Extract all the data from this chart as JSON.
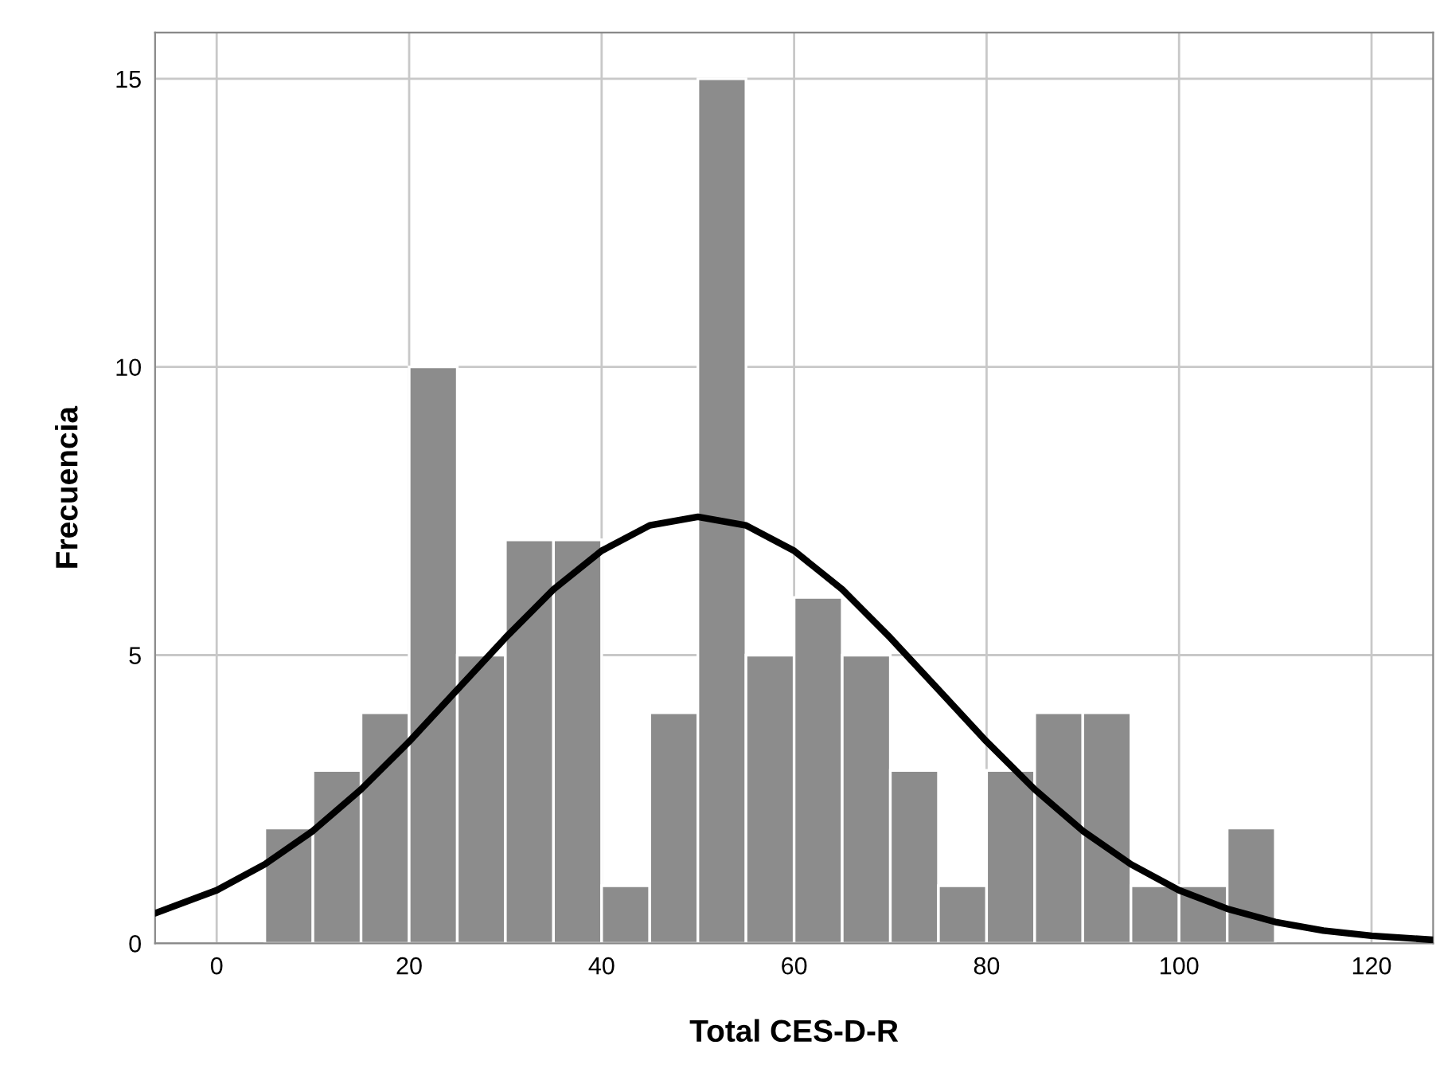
{
  "chart_data": {
    "type": "histogram",
    "xlabel": "Total CES-D-R",
    "ylabel": "Frecuencia",
    "bins": [
      5,
      10,
      15,
      20,
      25,
      30,
      35,
      40,
      45,
      50,
      55,
      60,
      65,
      70,
      75,
      80,
      85,
      90,
      95,
      100,
      105,
      110
    ],
    "values": [
      2,
      3,
      4,
      10,
      5,
      7,
      7,
      1,
      4,
      15,
      5,
      6,
      5,
      3,
      1,
      3,
      4,
      4,
      1,
      1,
      2
    ],
    "color": "#8c8c8c",
    "series": [
      {
        "type": "line",
        "color": "#000000",
        "x": [
          -6.4,
          0,
          5,
          10,
          15,
          20,
          25,
          30,
          35,
          40,
          45,
          50,
          55,
          60,
          65,
          70,
          75,
          80,
          85,
          90,
          95,
          100,
          105,
          110,
          115,
          120,
          126.4
        ],
        "values": [
          0.52,
          0.92,
          1.37,
          1.95,
          2.67,
          3.5,
          4.4,
          5.3,
          6.14,
          6.81,
          7.25,
          7.4,
          7.25,
          6.81,
          6.14,
          5.3,
          4.4,
          3.5,
          2.67,
          1.95,
          1.37,
          0.92,
          0.6,
          0.37,
          0.22,
          0.13,
          0.06
        ]
      }
    ],
    "xlim": [
      -6.4,
      126.4
    ],
    "xticks": [
      0,
      20,
      40,
      60,
      80,
      100,
      120
    ],
    "ylim": [
      0,
      15.8
    ],
    "yticks": [
      0,
      5,
      10,
      15
    ],
    "grid": true
  }
}
